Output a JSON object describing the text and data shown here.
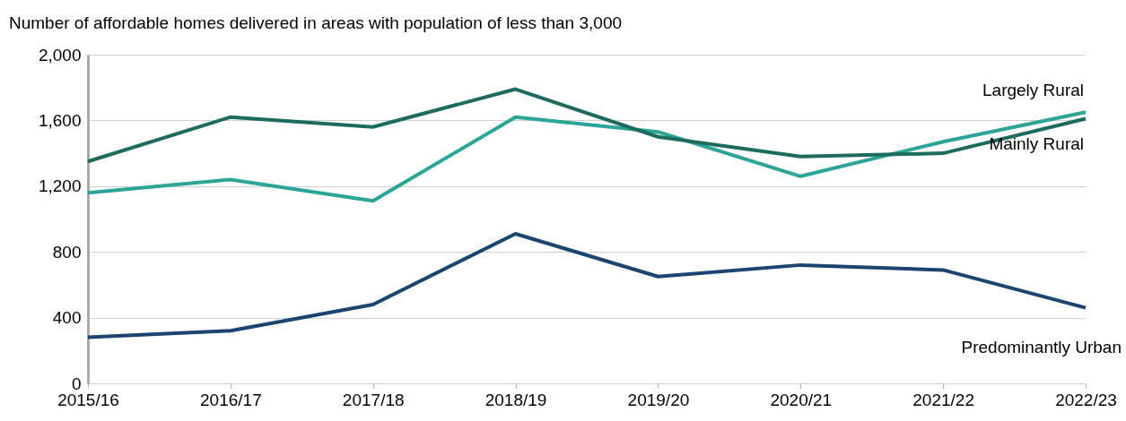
{
  "chart_data": {
    "type": "line",
    "title": "Number of affordable homes delivered in areas with population of less than 3,000",
    "categories": [
      "2015/16",
      "2016/17",
      "2017/18",
      "2018/19",
      "2019/20",
      "2020/21",
      "2021/22",
      "2022/23"
    ],
    "series": [
      {
        "name": "Largely Rural",
        "color": "#2ca597",
        "values": [
          1160,
          1240,
          1110,
          1620,
          1530,
          1260,
          1470,
          1650
        ]
      },
      {
        "name": "Mainly Rural",
        "color": "#1d6b5f",
        "values": [
          1350,
          1620,
          1560,
          1790,
          1500,
          1380,
          1400,
          1610
        ]
      },
      {
        "name": "Predominantly Urban",
        "color": "#1b4470",
        "values": [
          280,
          320,
          480,
          910,
          650,
          720,
          690,
          460
        ]
      }
    ],
    "ylim": [
      0,
      2000
    ],
    "yticks": [
      0,
      400,
      800,
      {
        "value": 1200,
        "label": "1,200"
      },
      {
        "value": 1600,
        "label": "1,600"
      },
      {
        "value": 2000,
        "label": "2,000"
      }
    ],
    "grid": "y",
    "marker": "none",
    "line_style": "solid"
  }
}
